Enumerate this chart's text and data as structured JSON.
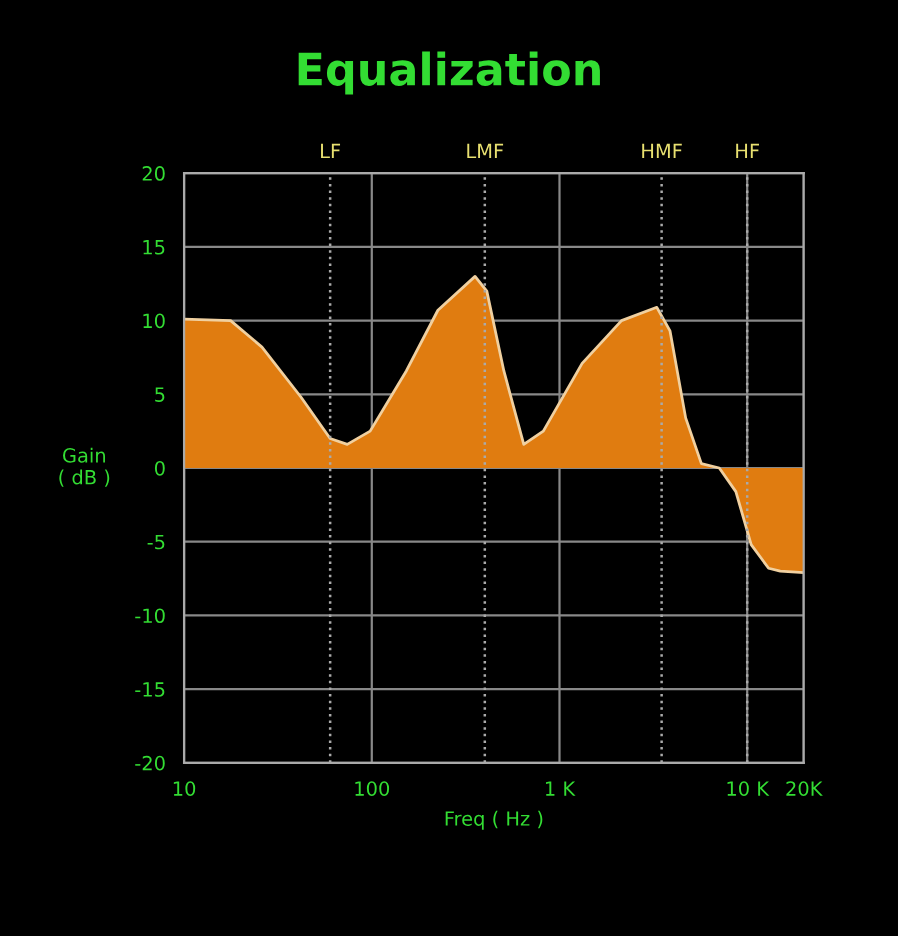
{
  "chart_data": {
    "type": "area",
    "title": "Equalization",
    "xlabel": "Freq ( Hz )",
    "ylabel": "Gain\n( dB )",
    "x": [
      10,
      17.7,
      26,
      42,
      60,
      74,
      98,
      153,
      225,
      355,
      410,
      505,
      645,
      820,
      1320,
      2140,
      3300,
      3880,
      4700,
      5700,
      7100,
      8700,
      10500,
      13000,
      15000,
      20000
    ],
    "series": [
      {
        "color": "#e07c10",
        "values": [
          10.1,
          10,
          8.2,
          4.8,
          2.0,
          1.6,
          2.5,
          6.6,
          10.7,
          13.0,
          12,
          6.6,
          1.6,
          2.5,
          7.1,
          10.0,
          10.9,
          9.3,
          3.4,
          0.3,
          0,
          -1.6,
          -5.2,
          -6.8,
          -7.0,
          -7.1
        ]
      }
    ],
    "log": "x",
    "xlim": [
      10,
      20000
    ],
    "xticks": [
      10,
      100,
      {
        "value": 1000,
        "label": "1 K"
      },
      {
        "value": 10000,
        "label": "10 K"
      },
      {
        "value": 20000,
        "label": "20K"
      }
    ],
    "ylim": [
      -20,
      20
    ],
    "yticks": [
      -20,
      -15,
      -10,
      -5,
      0,
      5,
      10,
      15,
      20
    ],
    "grid": true,
    "ref_lines": [
      {
        "axis": "x",
        "value": 60,
        "label": "LF"
      },
      {
        "axis": "x",
        "value": 400,
        "label": "LMF"
      },
      {
        "axis": "x",
        "value": 3500,
        "label": "HMF"
      },
      {
        "axis": "x",
        "value": 10000,
        "label": "HF"
      }
    ]
  }
}
